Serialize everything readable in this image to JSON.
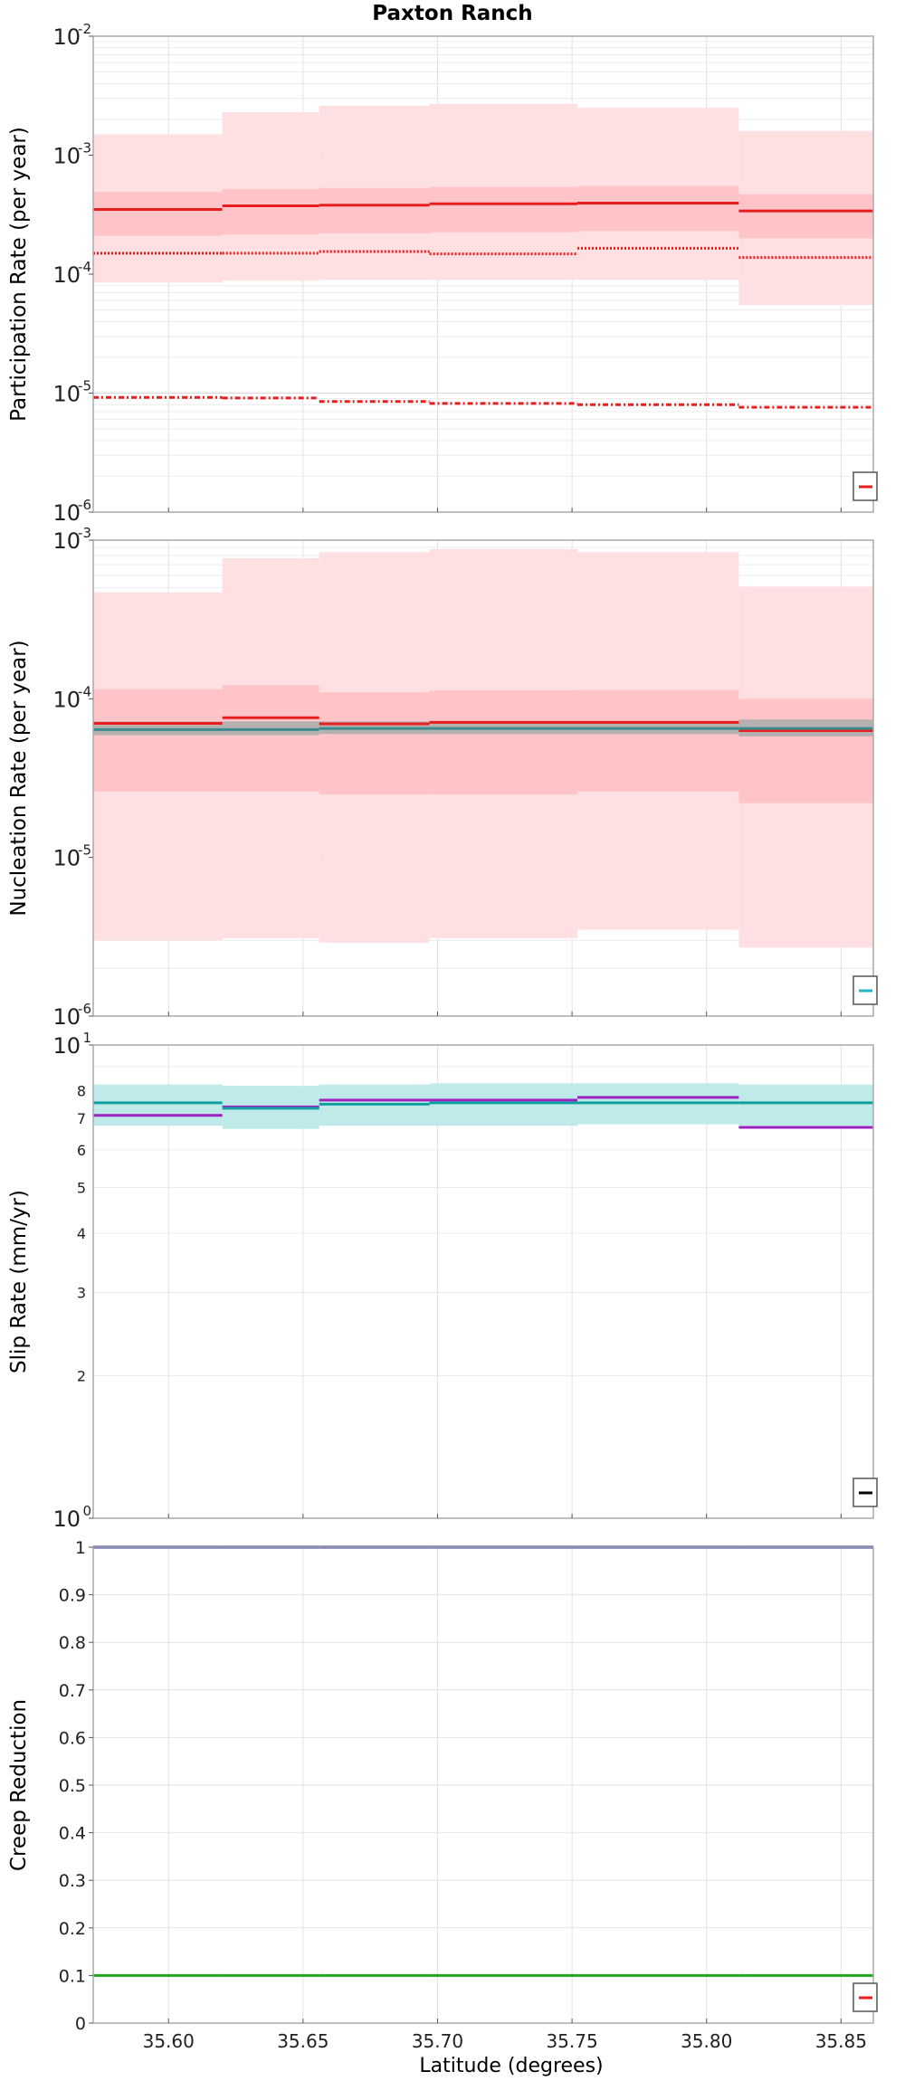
{
  "figure": {
    "title": "Paxton Ranch",
    "xlabel": "Latitude (degrees)",
    "xlim": [
      35.572,
      35.862
    ],
    "xticks": [
      "35.60",
      "35.65",
      "35.70",
      "35.75",
      "35.80",
      "35.85"
    ],
    "xtick_values": [
      35.6,
      35.65,
      35.7,
      35.75,
      35.8,
      35.85
    ],
    "segment_bounds": [
      35.572,
      35.62,
      35.656,
      35.697,
      35.752,
      35.812,
      35.862
    ]
  },
  "chart_data": [
    {
      "type": "step",
      "panel": "participation",
      "ylabel": "Participation Rate (per year)",
      "yscale": "log",
      "ylim": [
        1e-06,
        0.01
      ],
      "yticks": [
        {
          "base": "10",
          "exp": "-6",
          "value": 1e-06
        },
        {
          "base": "10",
          "exp": "-5",
          "value": 1e-05
        },
        {
          "base": "10",
          "exp": "-4",
          "value": 0.0001
        },
        {
          "base": "10",
          "exp": "-3",
          "value": 0.001
        },
        {
          "base": "10",
          "exp": "-2",
          "value": 0.01
        }
      ],
      "bands": [
        {
          "name": "outer-range",
          "color": "#ffe0e2",
          "lower": [
            8.5e-05,
            8.8e-05,
            9e-05,
            9e-05,
            9e-05,
            5.5e-05
          ],
          "upper": [
            0.0015,
            0.0023,
            0.0026,
            0.0027,
            0.0025,
            0.0016
          ]
        },
        {
          "name": "inner-range",
          "color": "#ffc4c8",
          "lower": [
            0.00021,
            0.000215,
            0.00022,
            0.000225,
            0.00023,
            0.0002
          ],
          "upper": [
            0.00049,
            0.00052,
            0.00053,
            0.00054,
            0.00055,
            0.00047
          ]
        }
      ],
      "series": [
        {
          "name": "mean",
          "color": "#e81e1e",
          "dash": "solid",
          "values": [
            0.00035,
            0.000375,
            0.00038,
            0.00039,
            0.000395,
            0.00034
          ]
        },
        {
          "name": "dotted",
          "color": "#e81e1e",
          "dash": "dotted",
          "values": [
            0.00015,
            0.00015,
            0.000155,
            0.000148,
            0.000165,
            0.000138
          ]
        },
        {
          "name": "dash-dot",
          "color": "#e81e1e",
          "dash": "dashdot",
          "values": [
            9.2e-06,
            9.1e-06,
            8.5e-06,
            8.2e-06,
            8e-06,
            7.6e-06
          ]
        }
      ],
      "legend": {
        "color": "#e81e1e",
        "position": "bottom-right"
      }
    },
    {
      "type": "step",
      "panel": "nucleation",
      "ylabel": "Nucleation Rate (per year)",
      "yscale": "log",
      "ylim": [
        1e-06,
        0.001
      ],
      "yticks": [
        {
          "base": "10",
          "exp": "-6",
          "value": 1e-06
        },
        {
          "base": "10",
          "exp": "-5",
          "value": 1e-05
        },
        {
          "base": "10",
          "exp": "-4",
          "value": 0.0001
        },
        {
          "base": "10",
          "exp": "-3",
          "value": 0.001
        }
      ],
      "bands": [
        {
          "name": "outer-range",
          "color": "#ffe0e2",
          "lower": [
            3e-06,
            3.1e-06,
            2.9e-06,
            3.1e-06,
            3.5e-06,
            2.7e-06
          ],
          "upper": [
            0.00047,
            0.00077,
            0.00084,
            0.00088,
            0.00084,
            0.00051
          ]
        },
        {
          "name": "inner-range",
          "color": "#ffc4c8",
          "lower": [
            2.6e-05,
            2.6e-05,
            2.5e-05,
            2.5e-05,
            2.6e-05,
            2.2e-05
          ],
          "upper": [
            0.000115,
            0.000122,
            0.00011,
            0.000113,
            0.000114,
            0.0001
          ]
        },
        {
          "name": "gray-range",
          "color": "#b4b0b0",
          "lower": [
            5.9e-05,
            5.9e-05,
            6e-05,
            6e-05,
            6e-05,
            5.8e-05
          ],
          "upper": [
            7.2e-05,
            7.2e-05,
            7.2e-05,
            7.2e-05,
            7.2e-05,
            7.4e-05
          ]
        }
      ],
      "series": [
        {
          "name": "mean",
          "color": "#e81e1e",
          "dash": "solid",
          "values": [
            7e-05,
            7.6e-05,
            6.95e-05,
            7.1e-05,
            7.1e-05,
            6.3e-05
          ]
        },
        {
          "name": "teal-mean",
          "color": "#3d8a8c",
          "dash": "solid",
          "values": [
            6.4e-05,
            6.4e-05,
            6.5e-05,
            6.5e-05,
            6.5e-05,
            6.5e-05
          ]
        }
      ],
      "legend": {
        "color": "#20b8c8",
        "position": "bottom-right"
      }
    },
    {
      "type": "step",
      "panel": "slip",
      "ylabel": "Slip Rate (mm/yr)",
      "yscale": "log",
      "ylim": [
        1,
        10
      ],
      "yticks": [
        {
          "base": "10",
          "exp": "0",
          "value": 1
        },
        {
          "base": "10",
          "exp": "1",
          "value": 10
        }
      ],
      "minor_ticks": [
        "2",
        "3",
        "4",
        "5",
        "6",
        "7",
        "8"
      ],
      "minor_tick_values": [
        2,
        3,
        4,
        5,
        6,
        7,
        8
      ],
      "bands": [
        {
          "name": "slip-range",
          "color": "#bfeaea",
          "lower": [
            6.75,
            6.65,
            6.75,
            6.75,
            6.8,
            6.75
          ],
          "upper": [
            8.25,
            8.2,
            8.25,
            8.3,
            8.3,
            8.25
          ]
        }
      ],
      "series": [
        {
          "name": "purple-rate",
          "color": "#a020c0",
          "dash": "solid",
          "values": [
            7.1,
            7.4,
            7.65,
            7.65,
            7.75,
            6.7
          ]
        },
        {
          "name": "teal-rate",
          "color": "#10a0a0",
          "dash": "solid",
          "values": [
            7.55,
            7.35,
            7.5,
            7.55,
            7.55,
            7.55
          ]
        }
      ],
      "legend": {
        "color": "#000000",
        "position": "bottom-right"
      }
    },
    {
      "type": "step",
      "panel": "creep",
      "ylabel": "Creep Reduction",
      "yscale": "linear",
      "ylim": [
        0,
        1
      ],
      "yticks": [
        {
          "base": "0",
          "exp": "",
          "value": 0
        },
        {
          "base": "0.1",
          "exp": "",
          "value": 0.1
        },
        {
          "base": "0.2",
          "exp": "",
          "value": 0.2
        },
        {
          "base": "0.3",
          "exp": "",
          "value": 0.3
        },
        {
          "base": "0.4",
          "exp": "",
          "value": 0.4
        },
        {
          "base": "0.5",
          "exp": "",
          "value": 0.5
        },
        {
          "base": "0.6",
          "exp": "",
          "value": 0.6
        },
        {
          "base": "0.7",
          "exp": "",
          "value": 0.7
        },
        {
          "base": "0.8",
          "exp": "",
          "value": 0.8
        },
        {
          "base": "0.9",
          "exp": "",
          "value": 0.9
        },
        {
          "base": "1",
          "exp": "",
          "value": 1
        }
      ],
      "bands": [],
      "series": [
        {
          "name": "navy-line",
          "color": "#3a3a9a",
          "dash": "solid",
          "values": [
            1,
            1,
            1,
            1,
            1,
            1
          ]
        },
        {
          "name": "green-line",
          "color": "#1ea81e",
          "dash": "solid",
          "values": [
            0.1,
            0.1,
            0.1,
            0.1,
            0.1,
            0.1
          ]
        }
      ],
      "legend": {
        "color": "#e81e1e",
        "position": "bottom-right"
      }
    }
  ]
}
